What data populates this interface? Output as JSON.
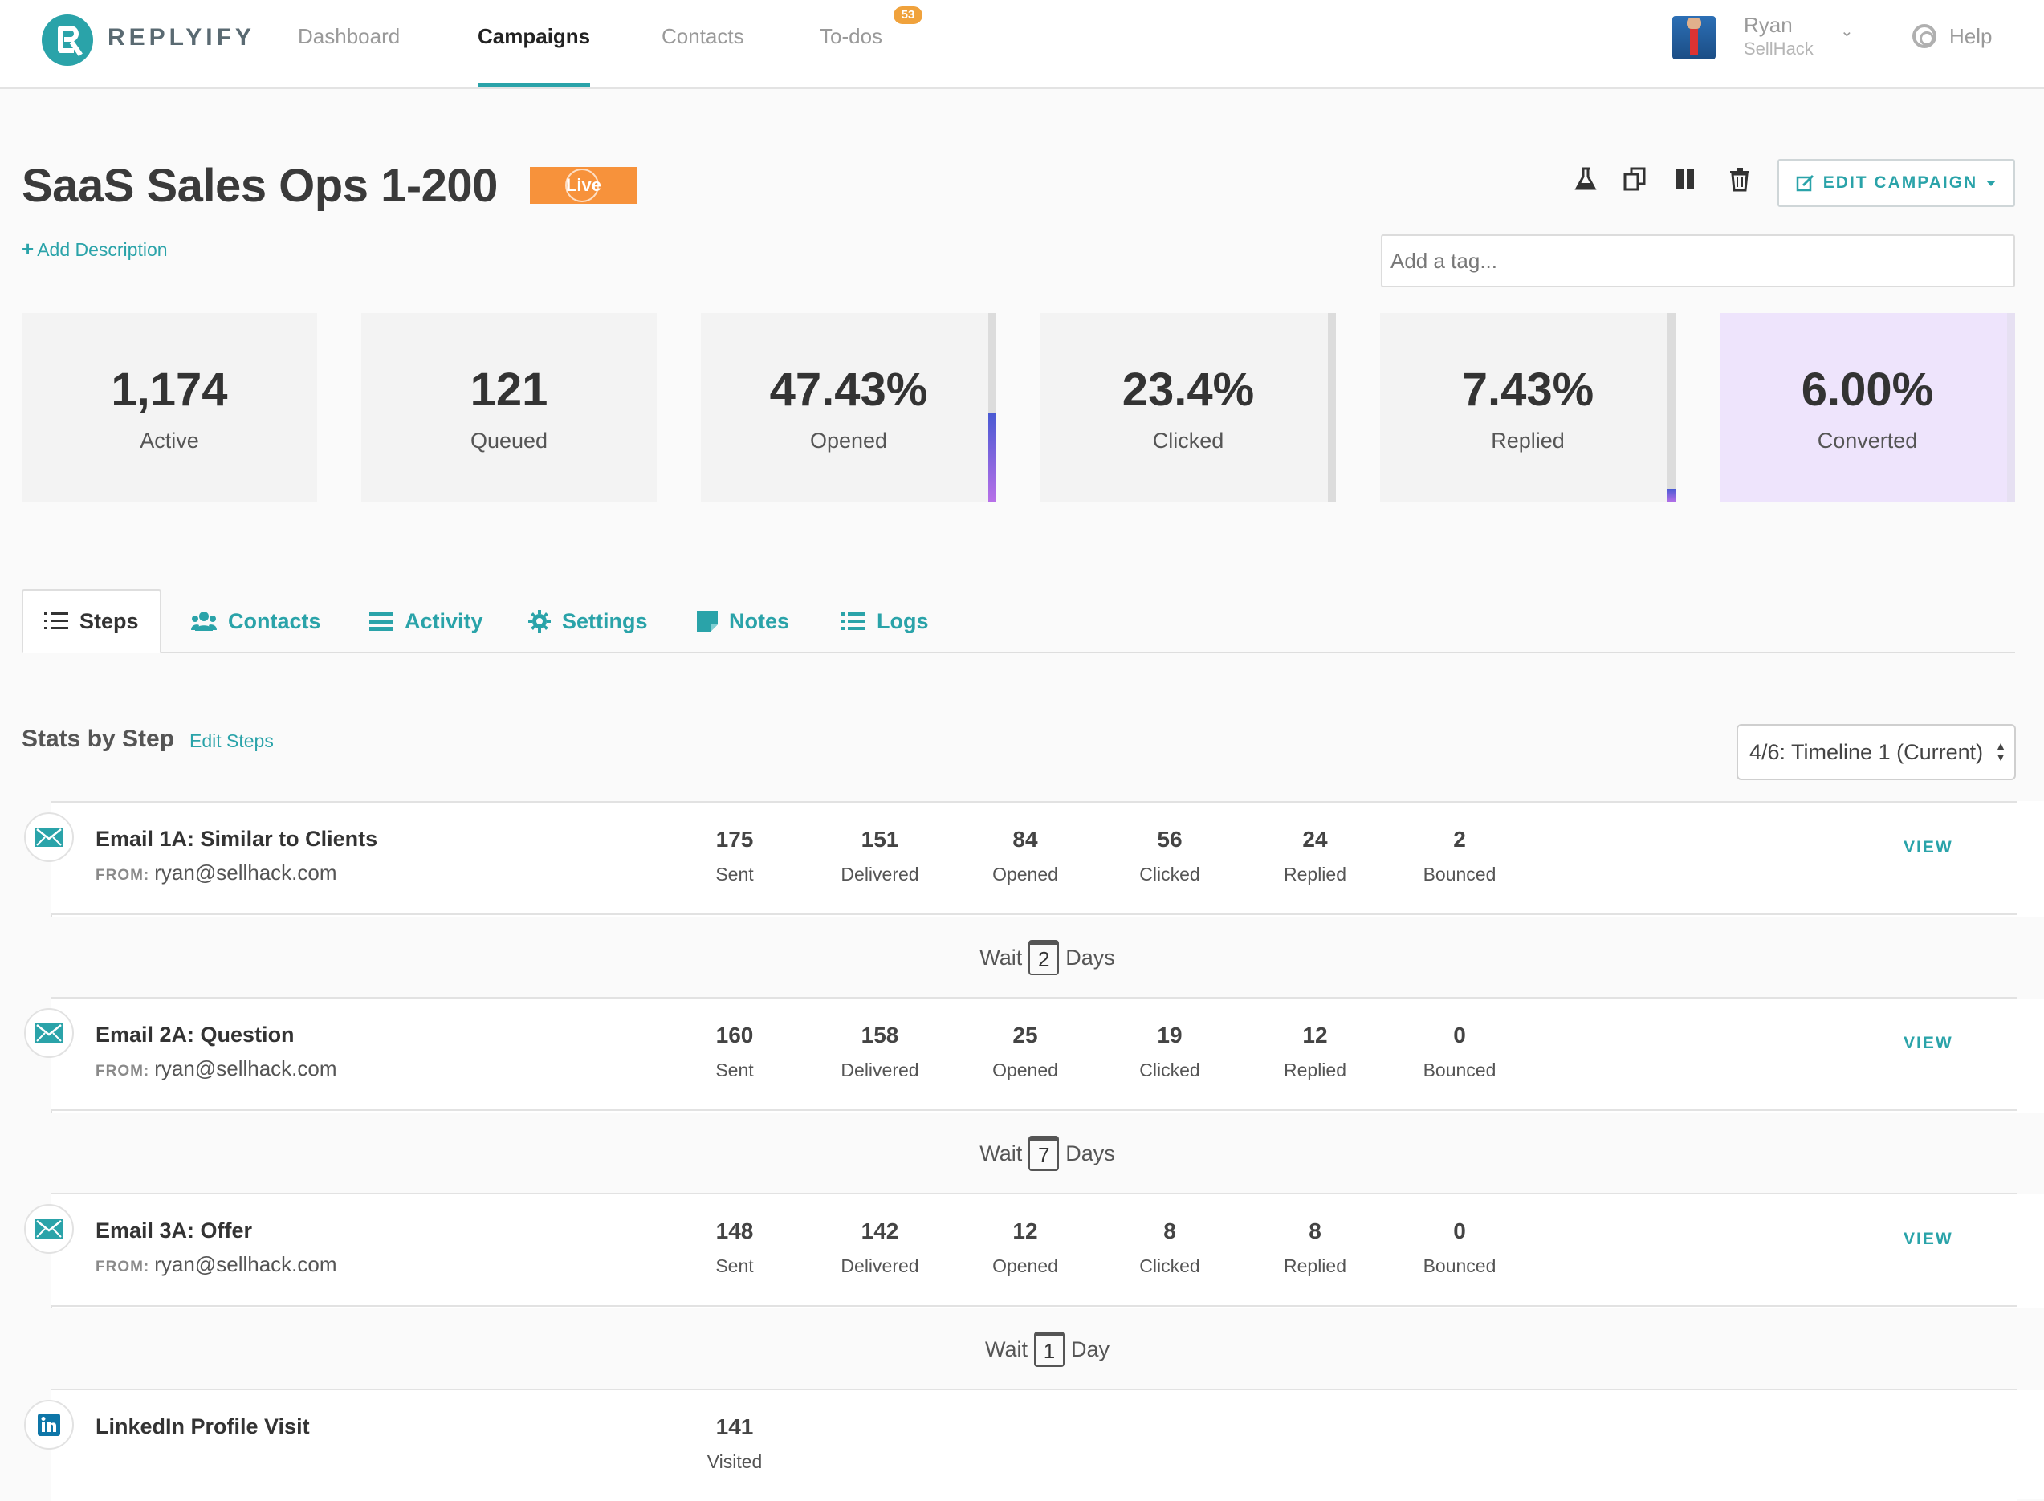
{
  "brand": {
    "name": "REPLYIFY",
    "accent": "#2aa3a9"
  },
  "nav": {
    "items": [
      {
        "label": "Dashboard"
      },
      {
        "label": "Campaigns"
      },
      {
        "label": "Contacts"
      },
      {
        "label": "To-dos"
      }
    ],
    "todo_badge": "53",
    "active": "Campaigns"
  },
  "user": {
    "name": "Ryan",
    "org": "SellHack"
  },
  "help": {
    "label": "Help"
  },
  "campaign": {
    "title": "SaaS Sales Ops 1-200",
    "status": "Live",
    "add_description": "Add Description",
    "edit_label": "EDIT CAMPAIGN",
    "tag_placeholder": "Add a tag...",
    "toolbar_icons": [
      "flask-icon",
      "copy-icon",
      "pause-icon",
      "trash-icon"
    ]
  },
  "stats": [
    {
      "value": "1,174",
      "label": "Active"
    },
    {
      "value": "121",
      "label": "Queued"
    },
    {
      "value": "47.43%",
      "label": "Opened"
    },
    {
      "value": "23.4%",
      "label": "Clicked"
    },
    {
      "value": "7.43%",
      "label": "Replied"
    },
    {
      "value": "6.00%",
      "label": "Converted"
    }
  ],
  "stat_bar_levels": {
    "Opened": 0.47,
    "Replied": 0.07
  },
  "tabs": [
    {
      "label": "Steps",
      "icon": "list-icon"
    },
    {
      "label": "Contacts",
      "icon": "users-icon"
    },
    {
      "label": "Activity",
      "icon": "activity-icon"
    },
    {
      "label": "Settings",
      "icon": "gear-icon"
    },
    {
      "label": "Notes",
      "icon": "note-icon"
    },
    {
      "label": "Logs",
      "icon": "logs-icon"
    }
  ],
  "stats_by_step": {
    "title": "Stats by Step",
    "edit_steps": "Edit Steps",
    "timeline": "4/6: Timeline 1 (Current)",
    "from_label": "FROM:",
    "view_label": "VIEW",
    "wait_label": "Wait",
    "steps": [
      {
        "title": "Email 1A: Similar to Clients",
        "from": "ryan@sellhack.com",
        "metrics": [
          {
            "n": "175",
            "l": "Sent"
          },
          {
            "n": "151",
            "l": "Delivered"
          },
          {
            "n": "84",
            "l": "Opened"
          },
          {
            "n": "56",
            "l": "Clicked"
          },
          {
            "n": "24",
            "l": "Replied"
          },
          {
            "n": "2",
            "l": "Bounced"
          }
        ]
      },
      {
        "title": "Email 2A: Question",
        "from": "ryan@sellhack.com",
        "metrics": [
          {
            "n": "160",
            "l": "Sent"
          },
          {
            "n": "158",
            "l": "Delivered"
          },
          {
            "n": "25",
            "l": "Opened"
          },
          {
            "n": "19",
            "l": "Clicked"
          },
          {
            "n": "12",
            "l": "Replied"
          },
          {
            "n": "0",
            "l": "Bounced"
          }
        ]
      },
      {
        "title": "Email 3A: Offer",
        "from": "ryan@sellhack.com",
        "metrics": [
          {
            "n": "148",
            "l": "Sent"
          },
          {
            "n": "142",
            "l": "Delivered"
          },
          {
            "n": "12",
            "l": "Opened"
          },
          {
            "n": "8",
            "l": "Clicked"
          },
          {
            "n": "8",
            "l": "Replied"
          },
          {
            "n": "0",
            "l": "Bounced"
          }
        ]
      },
      {
        "title": "LinkedIn Profile Visit",
        "metrics": [
          {
            "n": "141",
            "l": "Visited"
          }
        ]
      }
    ],
    "waits": [
      {
        "n": "2",
        "unit": "Days"
      },
      {
        "n": "7",
        "unit": "Days"
      },
      {
        "n": "1",
        "unit": "Day"
      }
    ]
  }
}
